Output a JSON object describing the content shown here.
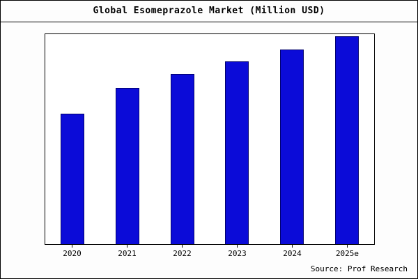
{
  "title": "Global Esomeprazole Market (Million USD)",
  "source": "Source: Prof Research",
  "colors": {
    "bar_fill": "#0b0bd8",
    "bar_border": "#00006a",
    "plot_border": "#000000",
    "background": "#fdfdfd"
  },
  "chart_data": {
    "type": "bar",
    "title": "Global Esomeprazole Market (Million USD)",
    "categories": [
      "2020",
      "2021",
      "2022",
      "2023",
      "2024",
      "2025e"
    ],
    "values": [
      620,
      745,
      810,
      870,
      928,
      990
    ],
    "xlabel": "",
    "ylabel": "",
    "ylim": [
      0,
      1000
    ],
    "grid": false,
    "legend": false,
    "source_note": "Source: Prof Research"
  }
}
